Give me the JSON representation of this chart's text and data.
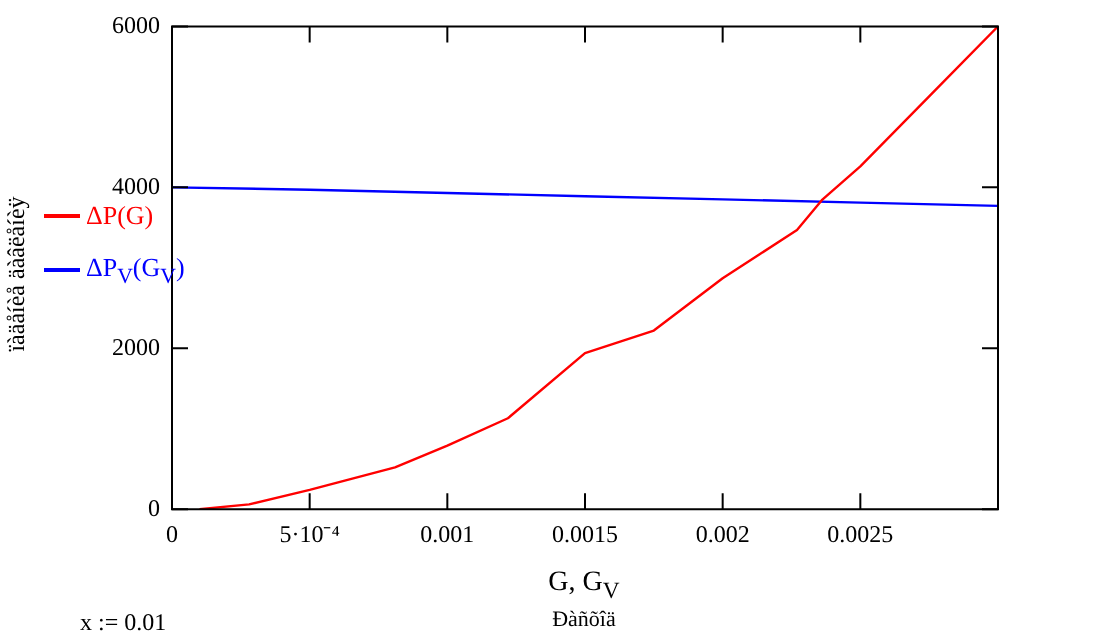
{
  "chart_data": {
    "type": "line",
    "ylabel": "ïàäåíèå äàâëåíèÿ",
    "xlabel": "G, G$_{V}$",
    "annotations": [
      "Ðàñõîä",
      "x := 0.01"
    ],
    "series": [
      {
        "name": "ΔP(G)",
        "color": "#ff0000",
        "x": [
          0.0001,
          0.00028,
          0.0005,
          0.00081,
          0.001,
          0.00122,
          0.0015,
          0.00175,
          0.002,
          0.00227,
          0.00236,
          0.0025,
          0.00275,
          0.003
        ],
        "values": [
          0,
          60,
          240,
          520,
          790,
          1130,
          1940,
          2220,
          2870,
          3470,
          3840,
          4260,
          5130,
          6000
        ]
      },
      {
        "name": "ΔP$_{V}$(G$_{V}$)",
        "color": "#0000ff",
        "x": [
          0,
          0.0005,
          0.001,
          0.0015,
          0.002,
          0.0025,
          0.003
        ],
        "values": [
          4000,
          3970,
          3930,
          3890,
          3850,
          3810,
          3770
        ]
      }
    ],
    "xlim": [
      0,
      0.003
    ],
    "xticks": [
      0,
      {
        "value": 0.0005,
        "label": "5·10⁻⁴"
      },
      0.001,
      0.0015,
      0.002,
      0.0025
    ],
    "ylim": [
      0,
      6000
    ],
    "yticks": [
      0,
      2000,
      4000,
      6000
    ],
    "grid": false,
    "legend": "left",
    "line_style": "solid",
    "marker": "none"
  }
}
